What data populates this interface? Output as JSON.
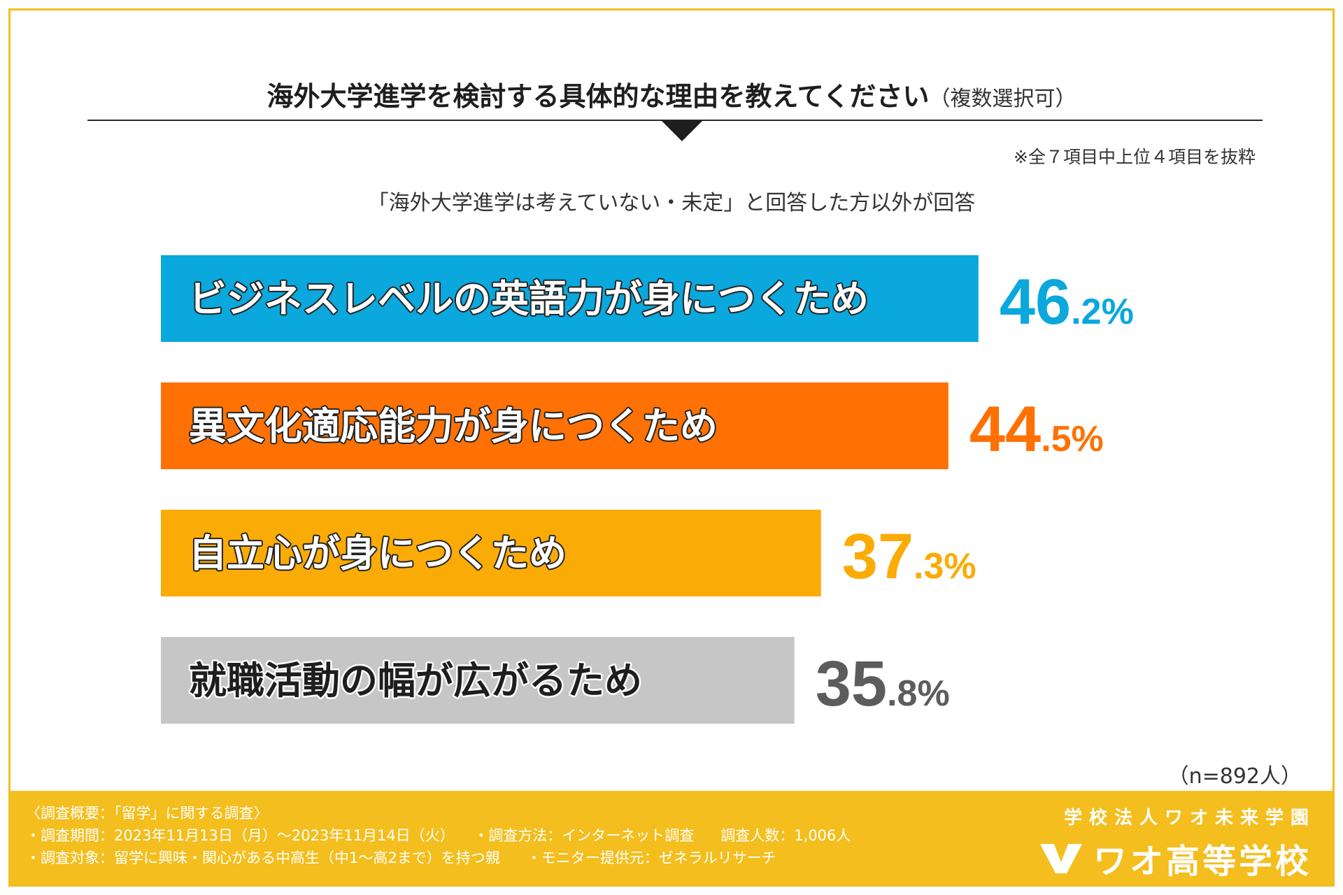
{
  "colors": {
    "frame": "#f3be1e",
    "bar1": "#0aa8dc",
    "bar2": "#ff7104",
    "bar3": "#fbab06",
    "bar4": "#c6c6c6"
  },
  "header": {
    "title": "海外大学進学を検討する具体的な理由を教えてください",
    "title_suffix": "（複数選択可）",
    "note": "※全７項目中上位４項目を抜粋",
    "subtitle": "「海外大学進学は考えていない・未定」と回答した方以外が回答"
  },
  "chart_data": {
    "type": "bar",
    "orientation": "horizontal",
    "unit": "%",
    "categories": [
      "ビジネスレベルの英語力が身につくため",
      "異文化適応能力が身につくため",
      "自立心が身につくため",
      "就職活動の幅が広がるため"
    ],
    "values": [
      46.2,
      44.5,
      37.3,
      35.8
    ],
    "value_labels": [
      {
        "int": "46",
        "dec": ".2%"
      },
      {
        "int": "44",
        "dec": ".5%"
      },
      {
        "int": "37",
        "dec": ".3%"
      },
      {
        "int": "35",
        "dec": ".8%"
      }
    ],
    "sample": "（n=892人）"
  },
  "footer": {
    "survey_title": "〈調査概要：「留学」に関する調査〉",
    "period": "・調査期間：2023年11月13日（月）～2023年11月14日（火）",
    "method": "・調査方法：インターネット調査",
    "count": "調査人数：1,006人",
    "target": "・調査対象：留学に興味・関心がある中高生（中1～高2まで）を持つ親",
    "provider": "・モニター提供元：ゼネラルリサーチ",
    "brand_sub": "学校法人ワオ未来学園",
    "brand_name": "ワオ高等学校",
    "logo_icon": "wao-logo-icon"
  }
}
